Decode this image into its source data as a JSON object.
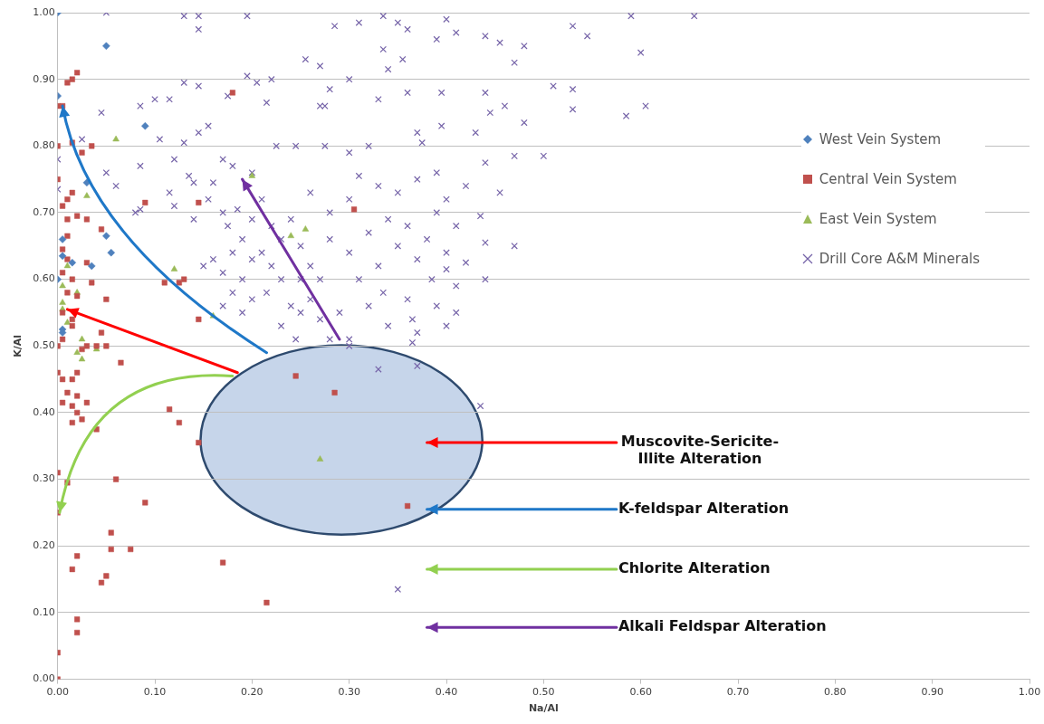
{
  "chart_data": {
    "type": "scatter",
    "xlabel": "Na/Al",
    "ylabel": "K/Al",
    "xlim": [
      0,
      1
    ],
    "ylim": [
      0,
      1
    ],
    "xticks": [
      {
        "value": 0,
        "label": "0.00"
      },
      {
        "value": 0.1,
        "label": "0.10"
      },
      {
        "value": 0.2,
        "label": "0.20"
      },
      {
        "value": 0.3,
        "label": "0.30"
      },
      {
        "value": 0.4,
        "label": "0.40"
      },
      {
        "value": 0.5,
        "label": "0.50"
      },
      {
        "value": 0.6,
        "label": "0.60"
      },
      {
        "value": 0.7,
        "label": "0.70"
      },
      {
        "value": 0.8,
        "label": "0.80"
      },
      {
        "value": 0.9,
        "label": "0.90"
      },
      {
        "value": 1,
        "label": "1.00"
      }
    ],
    "yticks": [
      {
        "value": 0,
        "label": "0.00"
      },
      {
        "value": 0.1,
        "label": "0.10"
      },
      {
        "value": 0.2,
        "label": "0.20"
      },
      {
        "value": 0.3,
        "label": "0.30"
      },
      {
        "value": 0.4,
        "label": "0.40"
      },
      {
        "value": 0.5,
        "label": "0.50"
      },
      {
        "value": 0.6,
        "label": "0.60"
      },
      {
        "value": 0.7,
        "label": "0.70"
      },
      {
        "value": 0.8,
        "label": "0.80"
      },
      {
        "value": 0.9,
        "label": "0.90"
      },
      {
        "value": 1,
        "label": "1.00"
      }
    ],
    "grid": "y",
    "legend": "right",
    "annotations": [
      "Muscovite-Sericite-Illite Alteration",
      "K-feldspar Alteration",
      "Chlorite Alteration",
      "Alkali Feldspar Alteration"
    ],
    "series": [
      {
        "name": "West Vein System",
        "color": "#4f81bd",
        "marker": "diamond",
        "x": [
          0,
          0.05,
          0,
          0.09,
          0.03,
          0.05,
          0.055,
          0.015,
          0.035,
          0,
          0.005,
          0.005,
          0.005,
          0.005
        ],
        "values": [
          1,
          0.95,
          0.875,
          0.83,
          0.745,
          0.665,
          0.64,
          0.625,
          0.62,
          0.6,
          0.66,
          0.525,
          0.52,
          0.635
        ]
      },
      {
        "name": "Central Vein System",
        "color": "#c0504d",
        "marker": "square",
        "x": [
          0,
          0.005,
          0.01,
          0.015,
          0.02,
          0,
          0.015,
          0.025,
          0.035,
          0.18,
          0,
          0.01,
          0.015,
          0.005,
          0.09,
          0.145,
          0.01,
          0.02,
          0.03,
          0.01,
          0.045,
          0.005,
          0.01,
          0.03,
          0.005,
          0.015,
          0.035,
          0.11,
          0.13,
          0.125,
          0.305,
          0.01,
          0.02,
          0.05,
          0.005,
          0.015,
          0.145,
          0.045,
          0.005,
          0.015,
          0,
          0.04,
          0.05,
          0.025,
          0.03,
          0.065,
          0,
          0.005,
          0.015,
          0.02,
          0.01,
          0.02,
          0.03,
          0.005,
          0.015,
          0.02,
          0.015,
          0.025,
          0.04,
          0.115,
          0.125,
          0.145,
          0,
          0.01,
          0.06,
          0.09,
          0,
          0.055,
          0.055,
          0.075,
          0.02,
          0.015,
          0.05,
          0.045,
          0.17,
          0.02,
          0.02,
          0,
          0,
          0.245,
          0.285,
          0.36,
          0.215
        ],
        "values": [
          0.86,
          0.86,
          0.895,
          0.9,
          0.91,
          0.8,
          0.805,
          0.79,
          0.8,
          0.88,
          0.75,
          0.72,
          0.73,
          0.71,
          0.715,
          0.715,
          0.69,
          0.695,
          0.69,
          0.665,
          0.675,
          0.645,
          0.63,
          0.625,
          0.61,
          0.6,
          0.595,
          0.595,
          0.6,
          0.595,
          0.705,
          0.58,
          0.575,
          0.57,
          0.55,
          0.54,
          0.54,
          0.52,
          0.51,
          0.53,
          0.5,
          0.5,
          0.5,
          0.495,
          0.5,
          0.475,
          0.46,
          0.45,
          0.45,
          0.46,
          0.43,
          0.425,
          0.415,
          0.415,
          0.41,
          0.4,
          0.385,
          0.39,
          0.375,
          0.405,
          0.385,
          0.355,
          0.31,
          0.295,
          0.3,
          0.265,
          0.25,
          0.22,
          0.195,
          0.195,
          0.185,
          0.165,
          0.155,
          0.145,
          0.175,
          0.09,
          0.07,
          0.04,
          0,
          0.455,
          0.43,
          0.26,
          0.115
        ]
      },
      {
        "name": "East Vein System",
        "color": "#9bbb59",
        "marker": "triangle",
        "x": [
          0.06,
          0.03,
          0.005,
          0.005,
          0.005,
          0.02,
          0.025,
          0.02,
          0.025,
          0.04,
          0.12,
          0.16,
          0.2,
          0.24,
          0.255,
          0.27,
          0.01,
          0.01
        ],
        "values": [
          0.81,
          0.725,
          0.59,
          0.565,
          0.555,
          0.58,
          0.51,
          0.49,
          0.48,
          0.495,
          0.615,
          0.545,
          0.755,
          0.665,
          0.675,
          0.33,
          0.62,
          0.535
        ]
      },
      {
        "name": "Drill Core A&M Minerals",
        "color": "#7563a8",
        "marker": "cross",
        "x": [
          0.05,
          0.13,
          0.145,
          0.145,
          0.195,
          0.335,
          0.4,
          0.285,
          0.31,
          0.35,
          0.36,
          0.39,
          0.41,
          0.44,
          0.53,
          0.59,
          0.655,
          0.545,
          0.6,
          0.455,
          0.48,
          0.47,
          0.335,
          0.355,
          0.34,
          0.36,
          0.3,
          0.28,
          0.27,
          0.255,
          0.22,
          0.195,
          0.205,
          0.13,
          0.145,
          0.175,
          0.1,
          0.085,
          0.115,
          0.045,
          0.215,
          0.27,
          0.275,
          0.33,
          0.395,
          0.44,
          0.51,
          0.53,
          0.53,
          0.585,
          0.605,
          0.46,
          0.48,
          0.445,
          0.43,
          0.37,
          0.375,
          0.395,
          0.275,
          0.3,
          0.32,
          0.225,
          0.245,
          0.31,
          0.47,
          0.5,
          0.44,
          0.455,
          0.435,
          0.47,
          0.44,
          0.44,
          0.41,
          0.4,
          0.42,
          0.36,
          0.365,
          0.37,
          0.365,
          0.34,
          0.4,
          0.435,
          0.35,
          0.33,
          0.37,
          0.06,
          0.05,
          0.105,
          0.085,
          0.08,
          0.12,
          0.155,
          0.13,
          0.145,
          0.135,
          0.14,
          0.18,
          0.2,
          0.17,
          0.115,
          0.12,
          0.14,
          0.155,
          0.16,
          0.17,
          0.175,
          0.185,
          0.19,
          0.2,
          0.21,
          0.18,
          0.16,
          0.15,
          0.17,
          0.19,
          0.2,
          0.21,
          0.22,
          0.23,
          0.215,
          0.2,
          0.18,
          0.17,
          0.19,
          0.24,
          0.26,
          0.25,
          0.23,
          0.27,
          0.28,
          0.3,
          0.29,
          0.32,
          0.335,
          0.31,
          0.33,
          0.3,
          0.32,
          0.34,
          0.35,
          0.37,
          0.38,
          0.36,
          0.39,
          0.41,
          0.3,
          0.33,
          0.35,
          0.37,
          0.39,
          0.4,
          0.42,
          0.26,
          0.28,
          0.24,
          0.25,
          0.26,
          0.28,
          0.27,
          0.25,
          0.23,
          0.22,
          0,
          0.025,
          0,
          0.085,
          0.245,
          0.3,
          0.39,
          0.41,
          0.385,
          0.4
        ],
        "values": [
          1,
          0.995,
          0.995,
          0.975,
          0.995,
          0.995,
          0.99,
          0.98,
          0.985,
          0.985,
          0.975,
          0.96,
          0.97,
          0.965,
          0.98,
          0.995,
          0.995,
          0.965,
          0.94,
          0.955,
          0.95,
          0.925,
          0.945,
          0.93,
          0.915,
          0.88,
          0.9,
          0.885,
          0.92,
          0.93,
          0.9,
          0.905,
          0.895,
          0.895,
          0.89,
          0.875,
          0.87,
          0.86,
          0.87,
          0.85,
          0.865,
          0.86,
          0.86,
          0.87,
          0.88,
          0.88,
          0.89,
          0.885,
          0.855,
          0.845,
          0.86,
          0.86,
          0.835,
          0.85,
          0.82,
          0.82,
          0.805,
          0.83,
          0.8,
          0.79,
          0.8,
          0.8,
          0.8,
          0.755,
          0.785,
          0.785,
          0.775,
          0.73,
          0.695,
          0.65,
          0.655,
          0.6,
          0.59,
          0.615,
          0.625,
          0.57,
          0.54,
          0.52,
          0.505,
          0.53,
          0.53,
          0.41,
          0.135,
          0.465,
          0.47,
          0.74,
          0.76,
          0.81,
          0.77,
          0.7,
          0.78,
          0.83,
          0.805,
          0.82,
          0.755,
          0.745,
          0.77,
          0.76,
          0.78,
          0.73,
          0.71,
          0.69,
          0.72,
          0.745,
          0.7,
          0.68,
          0.705,
          0.66,
          0.69,
          0.72,
          0.64,
          0.63,
          0.62,
          0.61,
          0.6,
          0.63,
          0.64,
          0.62,
          0.6,
          0.58,
          0.57,
          0.58,
          0.56,
          0.55,
          0.56,
          0.57,
          0.55,
          0.53,
          0.54,
          0.51,
          0.51,
          0.55,
          0.56,
          0.58,
          0.6,
          0.62,
          0.64,
          0.67,
          0.69,
          0.65,
          0.63,
          0.66,
          0.68,
          0.7,
          0.68,
          0.72,
          0.74,
          0.73,
          0.75,
          0.76,
          0.72,
          0.74,
          0.73,
          0.7,
          0.69,
          0.65,
          0.62,
          0.66,
          0.6,
          0.6,
          0.66,
          0.68,
          0.735,
          0.81,
          0.78,
          0.705,
          0.51,
          0.5,
          0.56,
          0.55,
          0.6,
          0.64
        ]
      }
    ]
  }
}
